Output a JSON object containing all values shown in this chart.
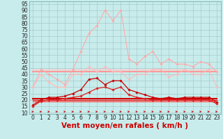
{
  "x": [
    0,
    1,
    2,
    3,
    4,
    5,
    6,
    7,
    8,
    9,
    10,
    11,
    12,
    13,
    14,
    15,
    16,
    17,
    18,
    19,
    20,
    21,
    22,
    23
  ],
  "series": [
    {
      "name": "rafales_light",
      "color": "#ffaaaa",
      "lw": 0.8,
      "marker": "D",
      "ms": 1.8,
      "values": [
        30,
        44,
        40,
        36,
        32,
        44,
        58,
        72,
        78,
        90,
        82,
        90,
        52,
        48,
        54,
        58,
        48,
        52,
        48,
        48,
        46,
        50,
        48,
        42
      ]
    },
    {
      "name": "moyen_light",
      "color": "#ffbbbb",
      "lw": 0.8,
      "marker": "D",
      "ms": 1.8,
      "values": [
        30,
        40,
        34,
        30,
        30,
        40,
        40,
        46,
        42,
        46,
        42,
        42,
        36,
        40,
        40,
        44,
        44,
        38,
        40,
        44,
        40,
        40,
        44,
        30
      ]
    },
    {
      "name": "flat_light1",
      "color": "#ff9999",
      "lw": 1.5,
      "marker": null,
      "ms": 0,
      "values": [
        42,
        42,
        42,
        42,
        42,
        42,
        42,
        42,
        42,
        42,
        42,
        42,
        42,
        42,
        42,
        42,
        42,
        42,
        42,
        42,
        42,
        42,
        42,
        42
      ]
    },
    {
      "name": "flat_light2",
      "color": "#ffcccc",
      "lw": 1.0,
      "marker": null,
      "ms": 0,
      "values": [
        44,
        44,
        44,
        44,
        44,
        44,
        44,
        44,
        44,
        44,
        44,
        44,
        44,
        44,
        44,
        44,
        44,
        44,
        44,
        44,
        44,
        44,
        44,
        44
      ]
    },
    {
      "name": "rafales_dark",
      "color": "#cc0000",
      "lw": 0.9,
      "marker": "D",
      "ms": 1.8,
      "values": [
        16,
        20,
        22,
        22,
        23,
        25,
        28,
        36,
        37,
        32,
        35,
        35,
        28,
        26,
        24,
        22,
        21,
        22,
        21,
        22,
        22,
        22,
        22,
        18
      ]
    },
    {
      "name": "moyen_dark",
      "color": "#dd2222",
      "lw": 0.9,
      "marker": "D",
      "ms": 1.8,
      "values": [
        15,
        19,
        20,
        20,
        21,
        22,
        23,
        26,
        29,
        30,
        28,
        30,
        24,
        22,
        21,
        20,
        20,
        20,
        20,
        20,
        20,
        20,
        20,
        17
      ]
    },
    {
      "name": "flat_dark1",
      "color": "#cc0000",
      "lw": 1.5,
      "marker": null,
      "ms": 0,
      "values": [
        21,
        21,
        21,
        21,
        21,
        21,
        21,
        21,
        21,
        21,
        21,
        21,
        21,
        21,
        21,
        21,
        21,
        21,
        21,
        21,
        21,
        21,
        21,
        21
      ]
    },
    {
      "name": "flat_dark2",
      "color": "#ee1111",
      "lw": 1.0,
      "marker": null,
      "ms": 0,
      "values": [
        20,
        20,
        20,
        20,
        20,
        20,
        20,
        20,
        20,
        20,
        20,
        20,
        20,
        20,
        20,
        20,
        20,
        20,
        20,
        20,
        20,
        20,
        20,
        20
      ]
    },
    {
      "name": "flat_dark3",
      "color": "#ff4444",
      "lw": 0.8,
      "marker": null,
      "ms": 0,
      "values": [
        19,
        19,
        19,
        19,
        19,
        19,
        19,
        19,
        19,
        19,
        19,
        19,
        19,
        19,
        19,
        19,
        19,
        19,
        19,
        19,
        19,
        19,
        19,
        19
      ]
    }
  ],
  "bg_color": "#c8ecec",
  "grid_color": "#a0c0c0",
  "xlabel": "Vent moyen/en rafales ( km/h )",
  "xlabel_color": "#cc0000",
  "xlabel_fontsize": 7.5,
  "yticks": [
    10,
    15,
    20,
    25,
    30,
    35,
    40,
    45,
    50,
    55,
    60,
    65,
    70,
    75,
    80,
    85,
    90,
    95
  ],
  "ylim": [
    9,
    97
  ],
  "xlim": [
    -0.5,
    23.5
  ],
  "xticks": [
    0,
    1,
    2,
    3,
    4,
    5,
    6,
    7,
    8,
    9,
    10,
    11,
    12,
    13,
    14,
    15,
    16,
    17,
    18,
    19,
    20,
    21,
    22,
    23
  ],
  "tick_fontsize": 5.5,
  "arrow_color": "#cc0000",
  "tick_color": "#222222"
}
